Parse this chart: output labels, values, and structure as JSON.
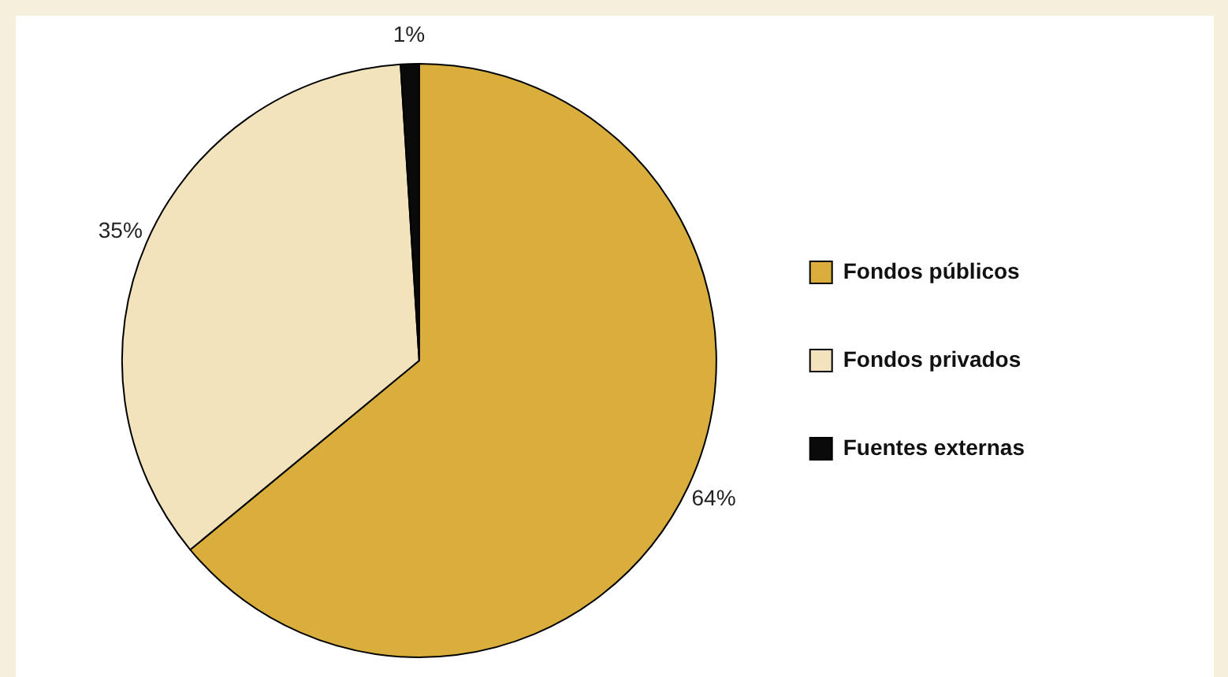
{
  "chart_data": {
    "type": "pie",
    "categories": [
      "Fondos públicos",
      "Fondos privados",
      "Fuentes externas"
    ],
    "values": [
      64,
      35,
      1
    ],
    "colors": [
      "#d9ae3c",
      "#f2e3bd",
      "#0a0a0a"
    ],
    "value_labels": [
      "64%",
      "35%",
      "1%"
    ],
    "legend": "right"
  }
}
